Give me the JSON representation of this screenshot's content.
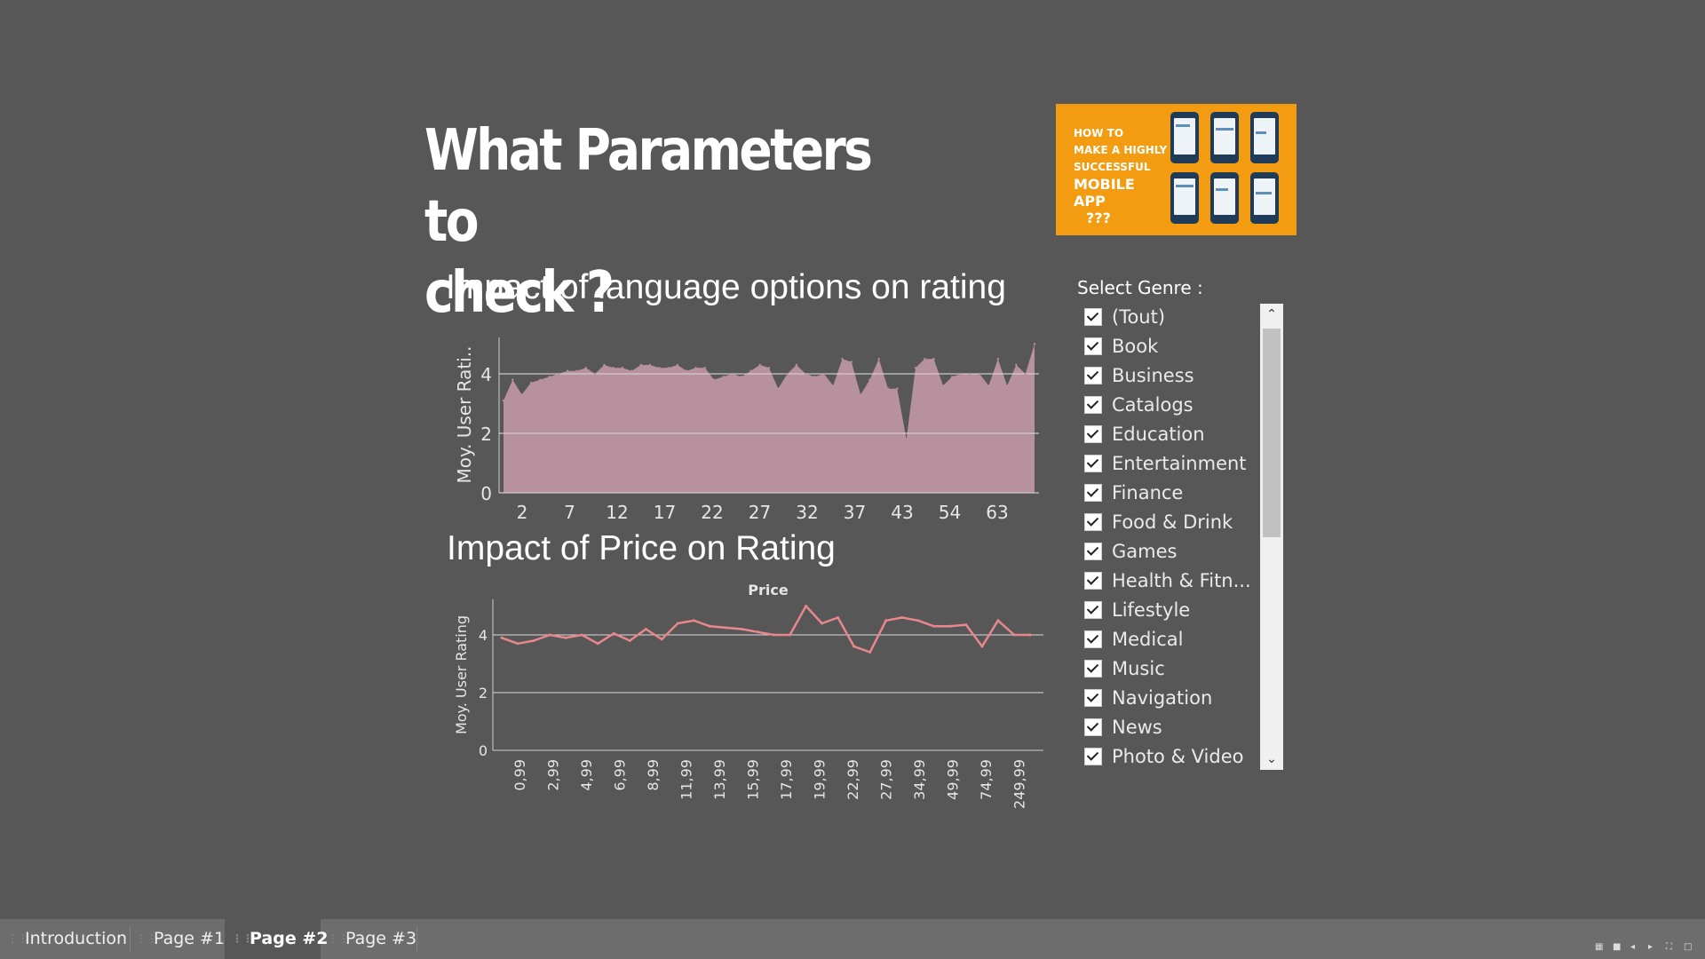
{
  "page": {
    "title_line1": "What Parameters to",
    "title_line2": "check ?"
  },
  "promo": {
    "line1": "How to",
    "line2": "make a highly",
    "line3": "successful",
    "line4": "mobile app",
    "line5": "???"
  },
  "filter": {
    "title": "Select Genre :",
    "items": [
      "(Tout)",
      "Book",
      "Business",
      "Catalogs",
      "Education",
      "Entertainment",
      "Finance",
      "Food & Drink",
      "Games",
      "Health & Fitn...",
      "Lifestyle",
      "Medical",
      "Music",
      "Navigation",
      "News",
      "Photo & Video"
    ],
    "checked": [
      true,
      true,
      true,
      true,
      true,
      true,
      true,
      true,
      true,
      true,
      true,
      true,
      true,
      true,
      true,
      true
    ]
  },
  "tabs": [
    {
      "label": "Introduction",
      "active": false
    },
    {
      "label": "Page #1",
      "active": false
    },
    {
      "label": "Page #2",
      "active": true
    },
    {
      "label": "Page #3",
      "active": false
    }
  ],
  "colors": {
    "background": "#575757",
    "area_fill": "#b8919f",
    "line": "#e8878c",
    "promo": "#f39c12"
  },
  "chart_data": [
    {
      "type": "area",
      "title": "Impact of language options on rating",
      "ylabel": "Moy. User Rati..",
      "xlabel": "",
      "ylim": [
        0,
        5
      ],
      "yticks": [
        0,
        2,
        4
      ],
      "xticks": [
        "2",
        "7",
        "12",
        "17",
        "22",
        "27",
        "32",
        "37",
        "43",
        "54",
        "63"
      ],
      "grid": true,
      "series": [
        {
          "values": [
            3.1,
            3.8,
            3.3,
            3.7,
            3.8,
            3.9,
            4.0,
            4.1,
            4.1,
            4.2,
            4.0,
            4.3,
            4.2,
            4.2,
            4.1,
            4.3,
            4.3,
            4.2,
            4.2,
            4.3,
            4.1,
            4.2,
            4.2,
            3.8,
            3.9,
            4.0,
            3.9,
            4.1,
            4.3,
            4.2,
            3.5,
            4.0,
            4.3,
            4.0,
            3.9,
            4.0,
            3.6,
            4.5,
            4.4,
            3.3,
            3.8,
            4.5,
            3.5,
            3.5,
            1.8,
            4.2,
            4.5,
            4.5,
            3.6,
            3.9,
            4.0,
            4.0,
            4.0,
            3.6,
            4.5,
            3.6,
            4.3,
            4.0,
            5.0
          ]
        }
      ]
    },
    {
      "type": "line",
      "title": "Impact of Price on Rating",
      "subtitle": "Price",
      "ylabel": "Moy. User Rating",
      "xlabel": "",
      "ylim": [
        0,
        5
      ],
      "yticks": [
        0,
        2,
        4
      ],
      "xtick_labels": [
        "0,99",
        "2,99",
        "4,99",
        "6,99",
        "8,99",
        "11,99",
        "13,99",
        "15,99",
        "17,99",
        "19,99",
        "22,99",
        "27,99",
        "34,99",
        "49,99",
        "74,99",
        "249,99"
      ],
      "grid": true,
      "series": [
        {
          "values": [
            3.9,
            3.7,
            3.8,
            4.0,
            3.9,
            4.0,
            3.7,
            4.05,
            3.8,
            4.2,
            3.85,
            4.4,
            4.5,
            4.3,
            4.25,
            4.2,
            4.1,
            4.0,
            4.0,
            5.0,
            4.4,
            4.6,
            3.6,
            3.4,
            4.5,
            4.6,
            4.5,
            4.3,
            4.3,
            4.35,
            3.6,
            4.5,
            4.0,
            4.0
          ]
        }
      ]
    }
  ]
}
